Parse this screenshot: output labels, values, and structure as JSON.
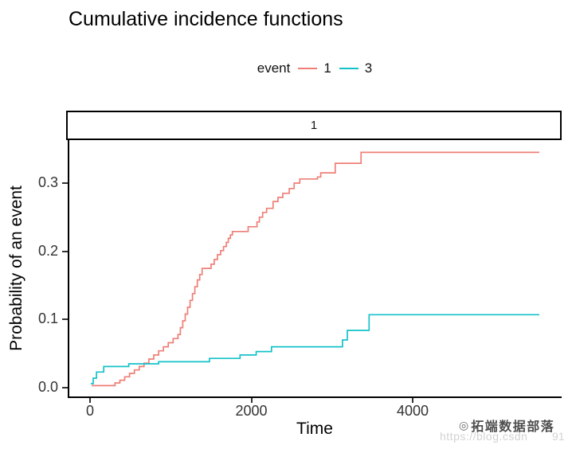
{
  "title": "Cumulative incidence functions",
  "facet": {
    "label": "1"
  },
  "legend": {
    "title": "event",
    "items": [
      {
        "label": "1",
        "color": "#EF7F76"
      },
      {
        "label": "3",
        "color": "#14C2CA"
      }
    ]
  },
  "watermark": {
    "logo_glyph": "◎",
    "brand": "拓端数据部落",
    "url": "https://blog.csdn",
    "url_suffix": "91"
  },
  "chart_data": {
    "type": "line",
    "subtype": "step",
    "title": "Cumulative incidence functions",
    "facet_label": "1",
    "xlabel": "Time",
    "ylabel": "Probability of an event",
    "legend_title": "event",
    "legend_position": "top-center",
    "grid": false,
    "xlim": [
      -280,
      5850
    ],
    "ylim": [
      -0.015,
      0.364
    ],
    "x_ticks": [
      0,
      2000,
      4000
    ],
    "x_tick_labels": [
      "0",
      "2000",
      "4000"
    ],
    "y_ticks": [
      0,
      0.1,
      0.2,
      0.3
    ],
    "y_tick_labels": [
      "0.0",
      "0.1",
      "0.2",
      "0.3"
    ],
    "series": [
      {
        "name": "1",
        "color": "#EF7F76",
        "points": [
          [
            20,
            0.003
          ],
          [
            310,
            0.007
          ],
          [
            370,
            0.011
          ],
          [
            430,
            0.016
          ],
          [
            490,
            0.021
          ],
          [
            550,
            0.026
          ],
          [
            610,
            0.031
          ],
          [
            670,
            0.036
          ],
          [
            730,
            0.042
          ],
          [
            790,
            0.048
          ],
          [
            850,
            0.054
          ],
          [
            910,
            0.06
          ],
          [
            970,
            0.066
          ],
          [
            1030,
            0.072
          ],
          [
            1090,
            0.078
          ],
          [
            1120,
            0.088
          ],
          [
            1150,
            0.098
          ],
          [
            1180,
            0.108
          ],
          [
            1210,
            0.118
          ],
          [
            1240,
            0.128
          ],
          [
            1270,
            0.138
          ],
          [
            1300,
            0.148
          ],
          [
            1330,
            0.158
          ],
          [
            1360,
            0.166
          ],
          [
            1390,
            0.175
          ],
          [
            1500,
            0.181
          ],
          [
            1540,
            0.188
          ],
          [
            1580,
            0.195
          ],
          [
            1620,
            0.201
          ],
          [
            1655,
            0.207
          ],
          [
            1690,
            0.213
          ],
          [
            1715,
            0.219
          ],
          [
            1740,
            0.224
          ],
          [
            1765,
            0.229
          ],
          [
            1960,
            0.236
          ],
          [
            2070,
            0.243
          ],
          [
            2100,
            0.25
          ],
          [
            2140,
            0.257
          ],
          [
            2190,
            0.263
          ],
          [
            2270,
            0.273
          ],
          [
            2330,
            0.279
          ],
          [
            2390,
            0.285
          ],
          [
            2470,
            0.292
          ],
          [
            2530,
            0.3
          ],
          [
            2600,
            0.306
          ],
          [
            2820,
            0.309
          ],
          [
            2860,
            0.315
          ],
          [
            3040,
            0.329
          ],
          [
            3360,
            0.345
          ],
          [
            5570,
            0.345
          ]
        ]
      },
      {
        "name": "3",
        "color": "#14C2CA",
        "points": [
          [
            10,
            0.006
          ],
          [
            40,
            0.014
          ],
          [
            80,
            0.023
          ],
          [
            170,
            0.031
          ],
          [
            480,
            0.035
          ],
          [
            850,
            0.038
          ],
          [
            1480,
            0.043
          ],
          [
            1860,
            0.048
          ],
          [
            2060,
            0.053
          ],
          [
            2250,
            0.06
          ],
          [
            3130,
            0.07
          ],
          [
            3190,
            0.084
          ],
          [
            3460,
            0.107
          ],
          [
            5570,
            0.107
          ]
        ]
      }
    ]
  }
}
